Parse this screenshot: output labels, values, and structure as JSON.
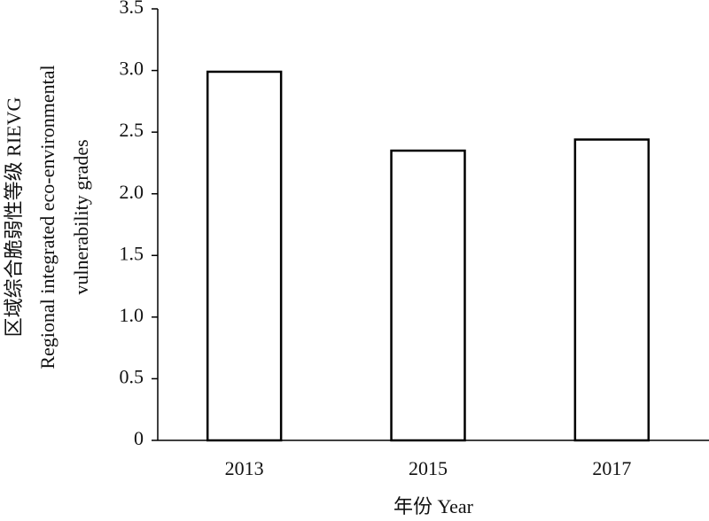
{
  "chart_data": {
    "type": "bar",
    "ylabel": [
      "区域综合脆弱性等级 RIEVG",
      "Regional integrated eco-environmental",
      "vulnerability grades"
    ],
    "xlabel": "年份 Year",
    "categories": [
      "2013",
      "2015",
      "2017"
    ],
    "values": [
      2.99,
      2.35,
      2.44
    ],
    "color": "#ffffff",
    "edgecolor": "#000000",
    "ylim": [
      0,
      3.5
    ],
    "yticks": [
      0,
      0.5,
      {
        "value": 1,
        "label": "1.0"
      },
      1.5,
      {
        "value": 2,
        "label": "2.0"
      },
      2.5,
      {
        "value": 3,
        "label": "3.0"
      },
      3.5
    ],
    "grid": false
  }
}
